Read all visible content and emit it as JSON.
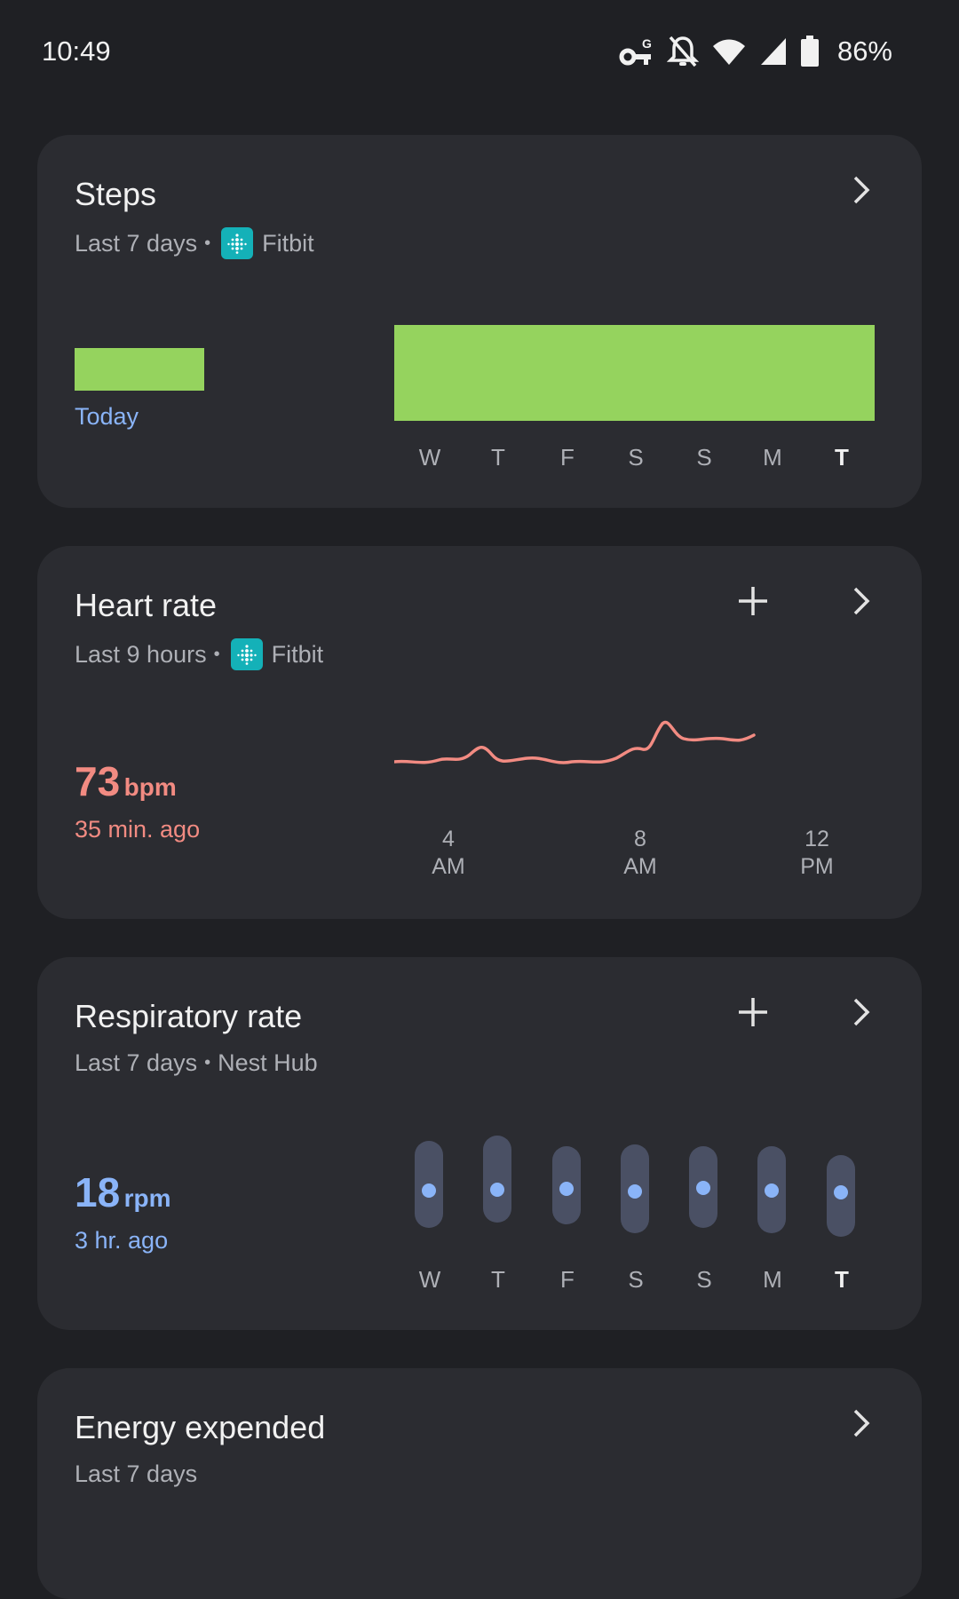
{
  "status_bar": {
    "time": "10:49",
    "battery": "86%",
    "icons": [
      "vpn-key-icon",
      "notifications-off-icon",
      "wifi-icon",
      "cell-signal-icon",
      "battery-icon"
    ]
  },
  "colors": {
    "background": "#1f2024",
    "card": "#2b2c31",
    "steps_green": "#95d35e",
    "heart_red": "#f28b82",
    "resp_blue": "#8ab4f8",
    "fitbit_teal": "#14b1b8"
  },
  "steps": {
    "title": "Steps",
    "subtitle_range": "Last 7 days",
    "source": "Fitbit",
    "today_label": "Today",
    "days": [
      "W",
      "T",
      "F",
      "S",
      "S",
      "M",
      "T"
    ],
    "highlight_day_index": 6
  },
  "heart_rate": {
    "title": "Heart rate",
    "subtitle_range": "Last 9 hours",
    "source": "Fitbit",
    "value": "73",
    "unit": "bpm",
    "ago": "35 min. ago",
    "axis_labels": [
      {
        "line1": "4",
        "line2": "AM"
      },
      {
        "line1": "8",
        "line2": "AM"
      },
      {
        "line1": "12",
        "line2": "PM"
      }
    ]
  },
  "respiratory": {
    "title": "Respiratory rate",
    "subtitle_range": "Last 7 days",
    "source": "Nest Hub",
    "value": "18",
    "unit": "rpm",
    "ago": "3 hr. ago",
    "days": [
      "W",
      "T",
      "F",
      "S",
      "S",
      "M",
      "T"
    ],
    "highlight_day_index": 6
  },
  "energy": {
    "title": "Energy expended",
    "subtitle_range": "Last 7 days"
  }
}
